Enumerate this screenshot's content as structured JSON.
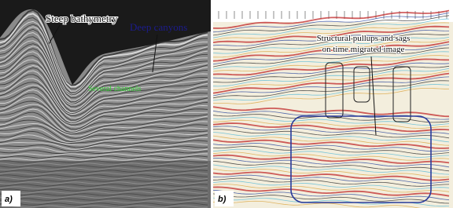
{
  "panels": [
    {
      "label": "a)",
      "annotations": [
        "Steep bathymetry",
        "Deep canyons",
        "Several channels"
      ]
    },
    {
      "label": "b)",
      "annotations": [
        "Structural pullups and sags",
        "on time migrated image"
      ]
    }
  ]
}
